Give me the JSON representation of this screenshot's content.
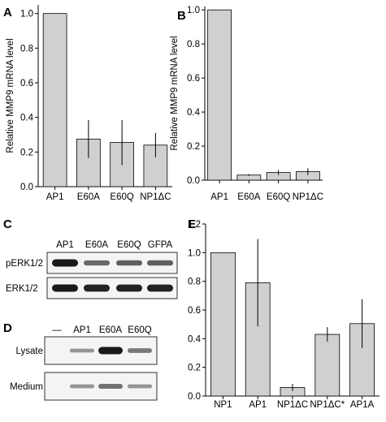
{
  "panel_labels": {
    "A": "A",
    "B": "B",
    "C": "C",
    "D": "D",
    "E": "E"
  },
  "colors": {
    "bar": "#d0d0d0",
    "axis": "#000000",
    "band": "#1a1a1a"
  },
  "chart_data": [
    {
      "id": "A",
      "type": "bar",
      "ylabel": "Relative MMP9 mRNA level",
      "categories": [
        "AP1",
        "E60A",
        "E60Q",
        "NP1ΔC"
      ],
      "values": [
        1.0,
        0.275,
        0.255,
        0.24
      ],
      "errors": [
        0,
        0.11,
        0.13,
        0.07
      ],
      "ylim": [
        0,
        1.05
      ],
      "yticks": [
        0.0,
        0.2,
        0.4,
        0.6,
        0.8,
        1.0
      ],
      "ytick_labels": [
        "0.0",
        "0.2",
        "0.4",
        "0.6",
        "0.8",
        "1.0"
      ]
    },
    {
      "id": "B",
      "type": "bar",
      "ylabel": "Relative MMP9 mRNA level",
      "categories": [
        "AP1",
        "E60A",
        "E60Q",
        "NP1ΔC"
      ],
      "values": [
        1.0,
        0.03,
        0.045,
        0.05
      ],
      "errors": [
        0,
        0.005,
        0.015,
        0.02
      ],
      "ylim": [
        0,
        1.02
      ],
      "yticks": [
        0.0,
        0.2,
        0.4,
        0.6,
        0.8,
        1.0
      ],
      "ytick_labels": [
        "0.0",
        "0.2",
        "0.4",
        "0.6",
        "0.8",
        "1.0"
      ]
    },
    {
      "id": "E",
      "type": "bar",
      "ylabel": "",
      "categories": [
        "NP1",
        "AP1",
        "NP1ΔC",
        "NP1ΔC*",
        "AP1A"
      ],
      "values": [
        1.0,
        0.79,
        0.06,
        0.43,
        0.505
      ],
      "errors": [
        0,
        0.305,
        0.025,
        0.05,
        0.17
      ],
      "ylim": [
        0,
        1.2
      ],
      "yticks": [
        0.0,
        0.2,
        0.4,
        0.6,
        0.8,
        1.0,
        1.2
      ],
      "ytick_labels": [
        "0.0",
        "0.2",
        "0.4",
        "0.6",
        "0.8",
        "1.0",
        "1.2"
      ]
    }
  ],
  "blot_c": {
    "lanes": [
      "AP1",
      "E60A",
      "E60Q",
      "GFPA"
    ],
    "rows": [
      {
        "label": "pERK1/2",
        "intensity": [
          1.0,
          0.55,
          0.6,
          0.6
        ]
      },
      {
        "label": "ERK1/2",
        "intensity": [
          1.0,
          0.95,
          0.95,
          0.95
        ]
      }
    ]
  },
  "blot_d": {
    "lanes": [
      "—",
      "AP1",
      "E60A",
      "E60Q"
    ],
    "rows": [
      {
        "label": "Lysate",
        "intensity": [
          0.0,
          0.3,
          1.0,
          0.45
        ]
      },
      {
        "label": "Medium",
        "intensity": [
          0.0,
          0.3,
          0.5,
          0.3
        ]
      }
    ]
  }
}
